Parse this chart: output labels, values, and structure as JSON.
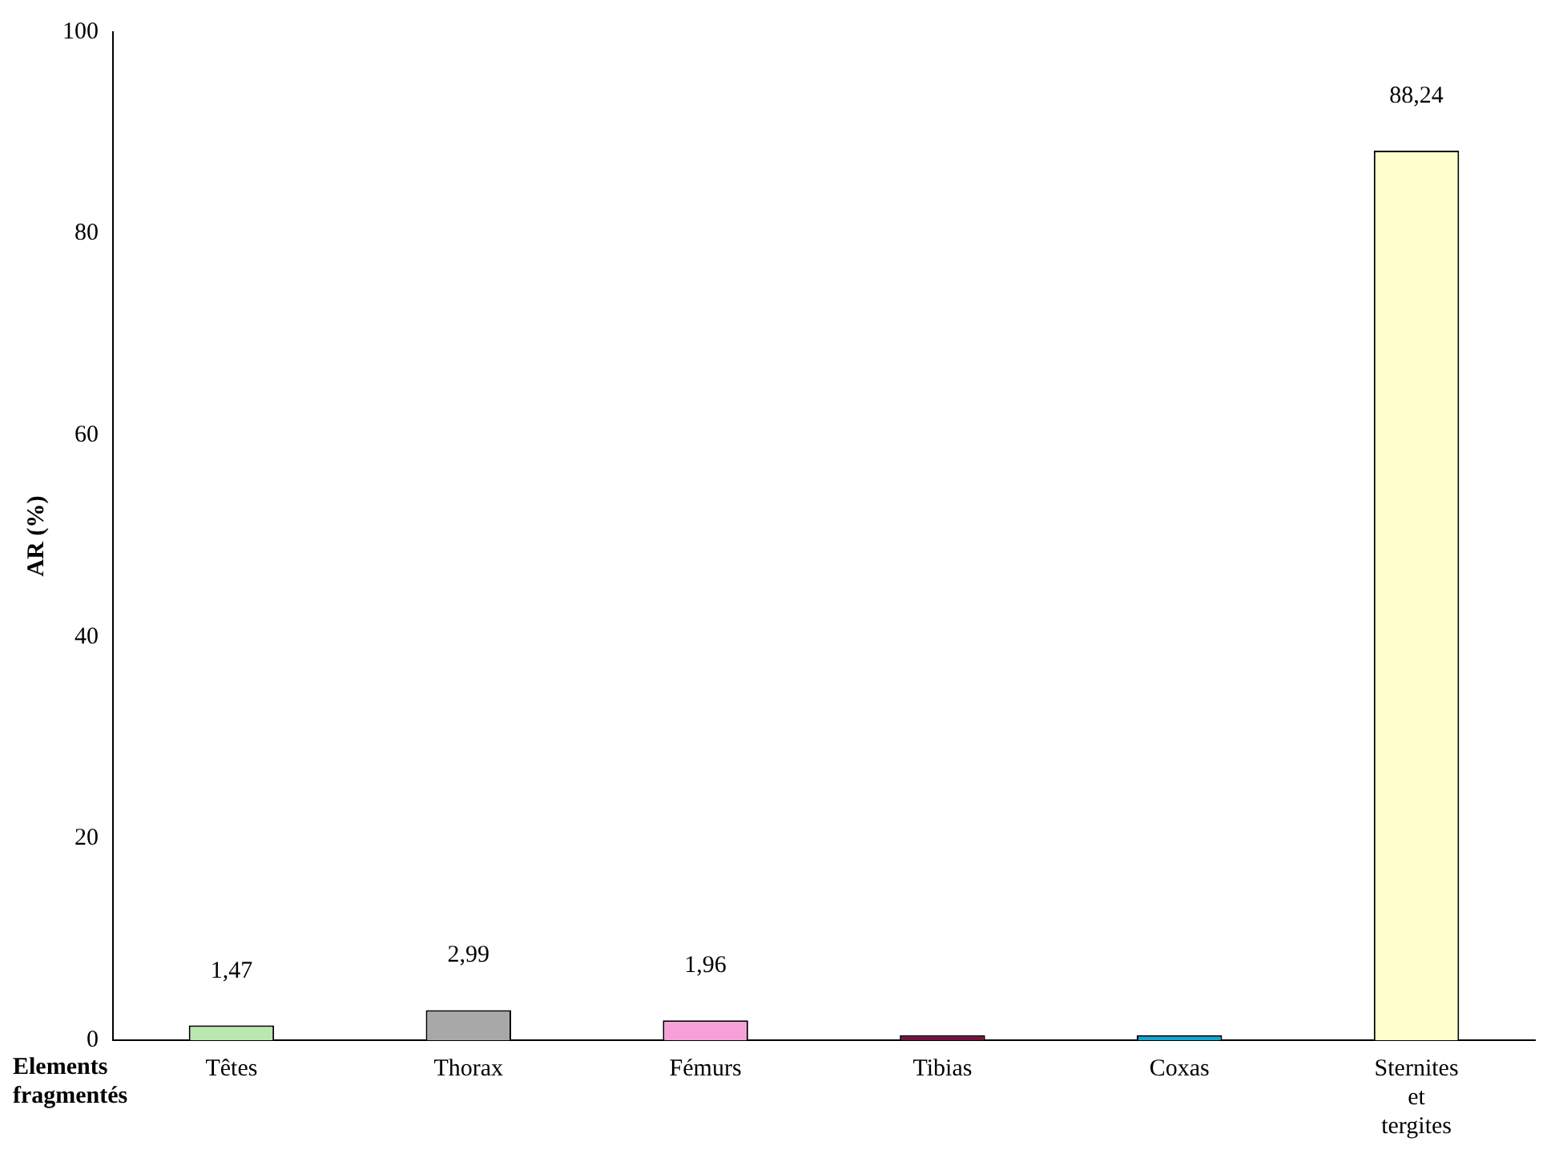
{
  "chart_data": {
    "type": "bar",
    "ylabel": "AR (%)",
    "xlabel": "Elements fragmentés",
    "categories": [
      "Têtes",
      "Thorax",
      "Fémurs",
      "Tibias",
      "Coxas",
      "Sternites et tergites"
    ],
    "values": [
      1.47,
      2.99,
      1.96,
      0.5,
      0.5,
      88.24
    ],
    "colors": [
      "#b8e8b0",
      "#a8a8a8",
      "#f7a0d8",
      "#7a1040",
      "#10a8d8",
      "#ffffcc"
    ],
    "value_labels": [
      "1,47",
      "2,99",
      "1,96",
      null,
      null,
      "88,24"
    ],
    "ylim": [
      0,
      100
    ],
    "yticks": [
      0,
      20,
      40,
      60,
      80,
      100
    ],
    "grid": false,
    "legend": false
  }
}
